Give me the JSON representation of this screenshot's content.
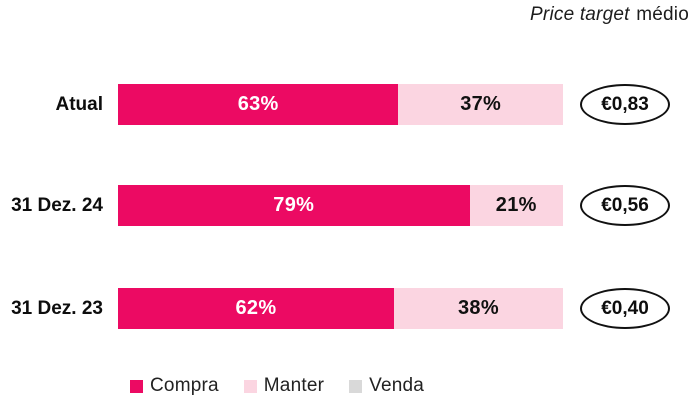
{
  "title": {
    "italic_part": "Price target",
    "regular_part": "médio"
  },
  "colors": {
    "compra": "#EC0A63",
    "manter": "#FBD5E1",
    "venda": "#D9D9D9",
    "text": "#141414"
  },
  "rows": [
    {
      "label": "Atual",
      "compra_pct": 63,
      "compra_text": "63%",
      "manter_pct": 37,
      "manter_text": "37%",
      "price_target": "€0,83"
    },
    {
      "label": "31 Dez. 24",
      "compra_pct": 79,
      "compra_text": "79%",
      "manter_pct": 21,
      "manter_text": "21%",
      "price_target": "€0,56"
    },
    {
      "label": "31 Dez. 23",
      "compra_pct": 62,
      "compra_text": "62%",
      "manter_pct": 38,
      "manter_text": "38%",
      "price_target": "€0,40"
    }
  ],
  "legend": {
    "compra": "Compra",
    "manter": "Manter",
    "venda": "Venda"
  },
  "chart_data": {
    "type": "bar",
    "orientation": "horizontal",
    "stacked": true,
    "title": "Price target médio",
    "categories": [
      "Atual",
      "31 Dez. 24",
      "31 Dez. 23"
    ],
    "series": [
      {
        "name": "Compra",
        "values": [
          63,
          79,
          62
        ],
        "color": "#EC0A63"
      },
      {
        "name": "Manter",
        "values": [
          37,
          21,
          38
        ],
        "color": "#FBD5E1"
      },
      {
        "name": "Venda",
        "values": [
          0,
          0,
          0
        ],
        "color": "#D9D9D9"
      }
    ],
    "annotations": [
      "€0,83",
      "€0,56",
      "€0,40"
    ],
    "annotation_label": "Price target médio",
    "xlim": [
      0,
      100
    ],
    "xlabel": "",
    "ylabel": "",
    "grid": false,
    "legend_position": "bottom"
  }
}
